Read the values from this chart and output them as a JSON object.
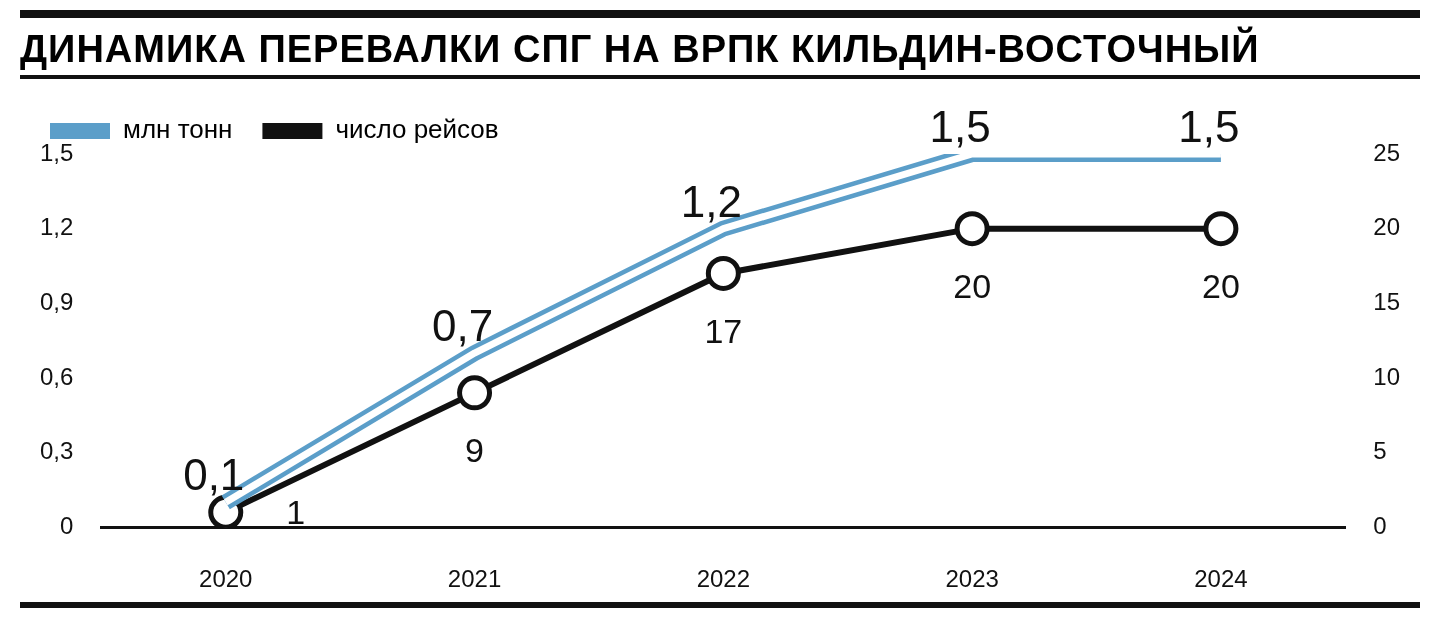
{
  "chart_data": {
    "type": "line",
    "title": "ДИНАМИКА ПЕРЕВАЛКИ СПГ НА ВРПК КИЛЬДИН-ВОСТОЧНЫЙ",
    "categories": [
      "2020",
      "2021",
      "2022",
      "2023",
      "2024"
    ],
    "series": [
      {
        "name": "млн тонн",
        "color": "#5b9ec9",
        "values": [
          0.1,
          0.7,
          1.2,
          1.5,
          1.5
        ],
        "value_labels": [
          "0,1",
          "0,7",
          "1,2",
          "1,5",
          "1,5"
        ],
        "marker": "none"
      },
      {
        "name": "число рейсов",
        "color": "#111111",
        "values": [
          1,
          9,
          17,
          20,
          20
        ],
        "axis": "y2",
        "marker": "circle"
      }
    ],
    "ylim": [
      0,
      1.5
    ],
    "yticks": [
      {
        "value": 0,
        "label": "0"
      },
      {
        "value": 0.3,
        "label": "0,3"
      },
      {
        "value": 0.6,
        "label": "0,6"
      },
      {
        "value": 0.9,
        "label": "0,9"
      },
      {
        "value": 1.2,
        "label": "1,2"
      },
      {
        "value": 1.5,
        "label": "1,5"
      }
    ],
    "y2lim": [
      0,
      25
    ],
    "y2ticks": [
      0,
      5,
      10,
      15,
      20,
      25
    ],
    "data_labels": true,
    "grid": false,
    "legend": "top"
  }
}
